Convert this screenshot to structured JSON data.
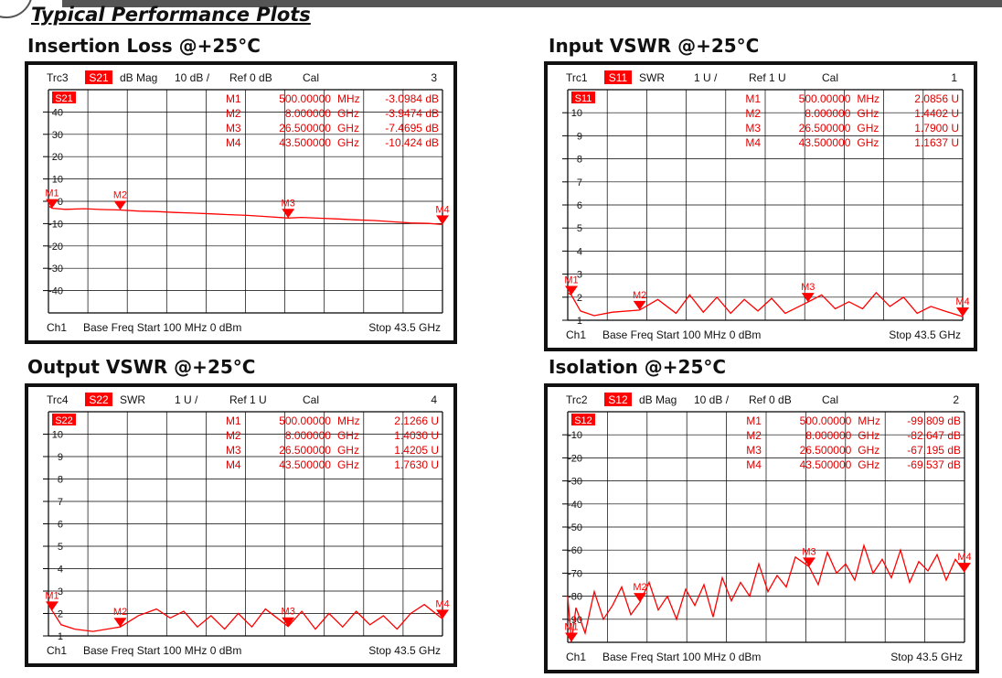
{
  "header": {
    "heading": "Typical Performance Plots"
  },
  "colors": {
    "trace": "#ff0000",
    "marker_text": "#e00000",
    "grid": "#000000",
    "header_text": "#111111",
    "badge_bg": "#ff0000",
    "badge_text": "#ffffff"
  },
  "chart_data": [
    {
      "type": "line",
      "title": "Insertion Loss @+25°C",
      "header": {
        "trace": "Trc3",
        "param": "S21",
        "format": "dB Mag",
        "scale": "10 dB /",
        "ref": "Ref 0 dB",
        "cal": "Cal",
        "number": "3"
      },
      "badge": "S21",
      "ylim": [
        -50,
        50
      ],
      "yticks": [
        "40",
        "30",
        "20",
        "10",
        "0",
        "-10",
        "-20",
        "-30",
        "-40"
      ],
      "footer": {
        "channel": "Ch1",
        "left": "Base Freq  Start  100 MHz  0 dBm",
        "right": "Stop  43.5 GHz"
      },
      "x_unit": "GHz",
      "xlim": [
        0.1,
        43.5
      ],
      "markers": [
        {
          "label": "M1",
          "freq": "500.00000",
          "unit": "MHz",
          "value": "-3.0984 dB",
          "x": 0.5,
          "y": -3.1
        },
        {
          "label": "M2",
          "freq": "8.000000",
          "unit": "GHz",
          "value": "-3.9474 dB",
          "x": 8.0,
          "y": -3.9
        },
        {
          "label": "M3",
          "freq": "26.500000",
          "unit": "GHz",
          "value": "-7.4695 dB",
          "x": 26.5,
          "y": -7.5
        },
        {
          "label": "M4",
          "freq": "43.500000",
          "unit": "GHz",
          "value": "-10.424 dB",
          "x": 43.5,
          "y": -10.4
        }
      ],
      "series": [
        {
          "x": [
            0.1,
            0.5,
            2,
            4,
            6,
            8,
            10,
            12,
            14,
            16,
            18,
            20,
            22,
            24,
            26.5,
            28,
            30,
            32,
            34,
            36,
            38,
            40,
            42,
            43.5
          ],
          "y": [
            -2.0,
            -3.1,
            -3.6,
            -3.3,
            -3.7,
            -3.9,
            -4.4,
            -4.6,
            -5.0,
            -5.3,
            -5.6,
            -6.0,
            -6.3,
            -6.8,
            -7.5,
            -7.2,
            -7.6,
            -7.9,
            -8.3,
            -8.6,
            -9.2,
            -9.7,
            -9.9,
            -10.4
          ]
        }
      ]
    },
    {
      "type": "line",
      "title": "Input VSWR @+25°C",
      "header": {
        "trace": "Trc1",
        "param": "S11",
        "format": "SWR",
        "scale": "1 U /",
        "ref": "Ref 1 U",
        "cal": "Cal",
        "number": "1"
      },
      "badge": "S11",
      "ylim": [
        1,
        11
      ],
      "yticks": [
        "10",
        "9",
        "8",
        "7",
        "6",
        "5",
        "4",
        "3",
        "2",
        "1"
      ],
      "footer": {
        "channel": "Ch1",
        "left": "Base Freq  Start  100 MHz  0 dBm",
        "right": "Stop  43.5 GHz"
      },
      "x_unit": "GHz",
      "xlim": [
        0.1,
        43.5
      ],
      "markers": [
        {
          "label": "M1",
          "freq": "500.00000",
          "unit": "MHz",
          "value": "2.0856 U",
          "x": 0.5,
          "y": 2.09
        },
        {
          "label": "M2",
          "freq": "8.000000",
          "unit": "GHz",
          "value": "1.4402 U",
          "x": 8.0,
          "y": 1.44
        },
        {
          "label": "M3",
          "freq": "26.500000",
          "unit": "GHz",
          "value": "1.7900 U",
          "x": 26.5,
          "y": 1.79
        },
        {
          "label": "M4",
          "freq": "43.500000",
          "unit": "GHz",
          "value": "1.1637 U",
          "x": 43.5,
          "y": 1.16
        }
      ],
      "series": [
        {
          "x": [
            0.1,
            0.5,
            1.5,
            3,
            5,
            8,
            10,
            12,
            13.5,
            15,
            16.5,
            18,
            19.5,
            21,
            22.5,
            24,
            26.5,
            28,
            29.5,
            31,
            32.5,
            34,
            35.5,
            37,
            38.5,
            40,
            41.5,
            43.5
          ],
          "y": [
            2.2,
            2.09,
            1.4,
            1.2,
            1.35,
            1.44,
            1.9,
            1.3,
            2.1,
            1.35,
            2.0,
            1.3,
            1.9,
            1.4,
            1.95,
            1.3,
            1.79,
            2.1,
            1.5,
            1.8,
            1.5,
            2.2,
            1.6,
            2.0,
            1.3,
            1.6,
            1.4,
            1.16
          ]
        }
      ]
    },
    {
      "type": "line",
      "title": "Output VSWR @+25°C",
      "header": {
        "trace": "Trc4",
        "param": "S22",
        "format": "SWR",
        "scale": "1 U /",
        "ref": "Ref 1 U",
        "cal": "Cal",
        "number": "4"
      },
      "badge": "S22",
      "ylim": [
        1,
        11
      ],
      "yticks": [
        "10",
        "9",
        "8",
        "7",
        "6",
        "5",
        "4",
        "3",
        "2",
        "1"
      ],
      "footer": {
        "channel": "Ch1",
        "left": "Base Freq  Start  100 MHz  0 dBm",
        "right": "Stop  43.5 GHz"
      },
      "x_unit": "GHz",
      "xlim": [
        0.1,
        43.5
      ],
      "markers": [
        {
          "label": "M1",
          "freq": "500.00000",
          "unit": "MHz",
          "value": "2.1266 U",
          "x": 0.5,
          "y": 2.13
        },
        {
          "label": "M2",
          "freq": "8.000000",
          "unit": "GHz",
          "value": "1.4030 U",
          "x": 8.0,
          "y": 1.4
        },
        {
          "label": "M3",
          "freq": "26.500000",
          "unit": "GHz",
          "value": "1.4205 U",
          "x": 26.5,
          "y": 1.42
        },
        {
          "label": "M4",
          "freq": "43.500000",
          "unit": "GHz",
          "value": "1.7630 U",
          "x": 43.5,
          "y": 1.76
        }
      ],
      "series": [
        {
          "x": [
            0.1,
            0.5,
            1.5,
            3,
            5,
            8,
            10,
            12,
            13.5,
            15,
            16.5,
            18,
            19.5,
            21,
            22.5,
            24,
            26.5,
            28,
            29.5,
            31,
            32.5,
            34,
            35.5,
            37,
            38.5,
            40,
            41.5,
            43.5
          ],
          "y": [
            2.4,
            2.13,
            1.5,
            1.3,
            1.2,
            1.4,
            1.9,
            2.2,
            1.8,
            2.1,
            1.4,
            1.9,
            1.3,
            2.0,
            1.4,
            2.2,
            1.42,
            2.1,
            1.3,
            2.0,
            1.4,
            2.1,
            1.5,
            1.9,
            1.3,
            2.0,
            2.4,
            1.76
          ]
        }
      ]
    },
    {
      "type": "line",
      "title": "Isolation @+25°C",
      "header": {
        "trace": "Trc2",
        "param": "S12",
        "format": "dB Mag",
        "scale": "10 dB /",
        "ref": "Ref 0 dB",
        "cal": "Cal",
        "number": "2"
      },
      "badge": "S12",
      "ylim": [
        -100,
        0
      ],
      "yticks": [
        "-10",
        "-20",
        "-30",
        "-40",
        "-50",
        "-60",
        "-70",
        "-80",
        "-90"
      ],
      "footer": {
        "channel": "Ch1",
        "left": "Base Freq  Start  100 MHz  0 dBm",
        "right": "Stop  43.5 GHz"
      },
      "x_unit": "GHz",
      "xlim": [
        0.1,
        43.5
      ],
      "markers": [
        {
          "label": "M1",
          "freq": "500.00000",
          "unit": "MHz",
          "value": "-99.809 dB",
          "x": 0.5,
          "y": -99.8
        },
        {
          "label": "M2",
          "freq": "8.000000",
          "unit": "GHz",
          "value": "-82.647 dB",
          "x": 8.0,
          "y": -82.6
        },
        {
          "label": "M3",
          "freq": "26.500000",
          "unit": "GHz",
          "value": "-67.195 dB",
          "x": 26.5,
          "y": -67.2
        },
        {
          "label": "M4",
          "freq": "43.500000",
          "unit": "GHz",
          "value": "-69.537 dB",
          "x": 43.5,
          "y": -69.5
        }
      ],
      "series": [
        {
          "x": [
            0.1,
            0.5,
            1,
            2,
            3,
            4,
            5,
            6,
            7,
            8,
            9,
            10,
            11,
            12,
            13,
            14,
            15,
            16,
            17,
            18,
            19,
            20,
            21,
            22,
            23,
            24,
            25,
            26.5,
            27.5,
            28.5,
            29.5,
            30.5,
            31.5,
            32.5,
            33.5,
            34.5,
            35.5,
            36.5,
            37.5,
            38.5,
            39.5,
            40.5,
            41.5,
            42.5,
            43.5
          ],
          "y": [
            -80,
            -99.8,
            -85,
            -96,
            -78,
            -90,
            -84,
            -76,
            -88,
            -82.6,
            -74,
            -86,
            -80,
            -90,
            -77,
            -84,
            -75,
            -89,
            -72,
            -82,
            -74,
            -80,
            -66,
            -78,
            -71,
            -76,
            -63,
            -67.2,
            -75,
            -61,
            -70,
            -66,
            -73,
            -58,
            -70,
            -64,
            -72,
            -60,
            -74,
            -65,
            -69,
            -62,
            -73,
            -64,
            -69.5
          ]
        }
      ]
    }
  ]
}
